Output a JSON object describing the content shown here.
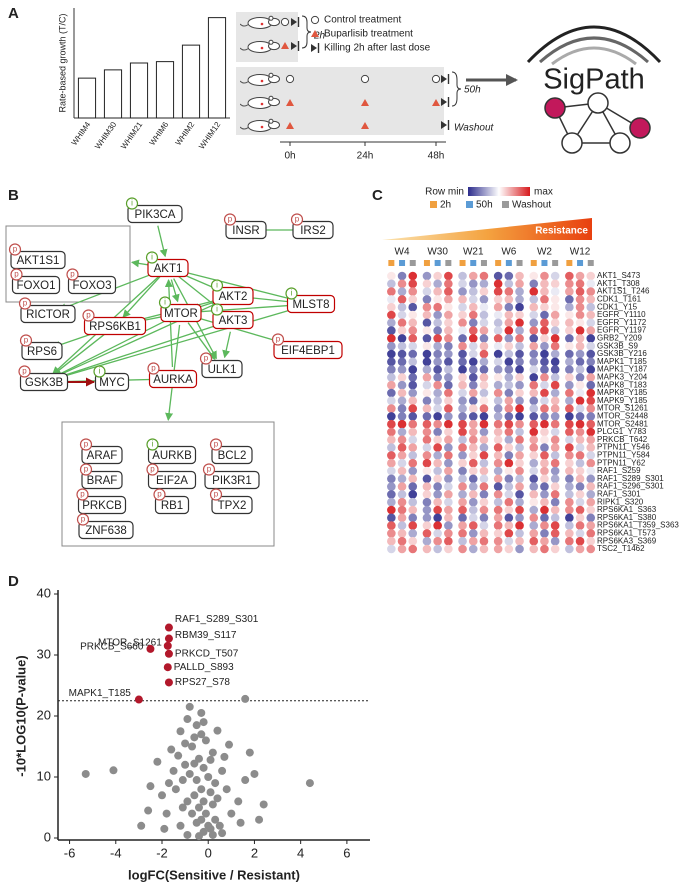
{
  "panels": [
    "A",
    "B",
    "C",
    "D"
  ],
  "diagram": {
    "legend": [
      "Control treatment",
      "Buparlisib treatment",
      "Killing 2h after last dose"
    ],
    "durations": [
      "2h",
      "50h",
      "Washout"
    ],
    "timepoints": [
      "0h",
      "24h",
      "48h"
    ],
    "logo": "SigPath"
  },
  "network": {
    "badge_colors": {
      "i": "#5aa02c",
      "p": "#c0504d"
    },
    "highlight_color": "#c00000",
    "edge_color": "#5cb85c",
    "inhibit_color": "#a01010",
    "nodes": [
      {
        "label": "PIK3CA",
        "badge": "i",
        "highlight": false
      },
      {
        "label": "INSR",
        "badge": "p",
        "highlight": false
      },
      {
        "label": "IRS2",
        "badge": "p",
        "highlight": false
      },
      {
        "label": "AKT1",
        "badge": "i",
        "highlight": true
      },
      {
        "label": "AKT2",
        "badge": "i",
        "highlight": true
      },
      {
        "label": "MLST8",
        "badge": "i",
        "highlight": true
      },
      {
        "label": "MTOR",
        "badge": "i",
        "highlight": true
      },
      {
        "label": "AKT3",
        "badge": "i",
        "highlight": true
      },
      {
        "label": "RPS6KB1",
        "badge": "p",
        "highlight": true
      },
      {
        "label": "RICTOR",
        "badge": "p",
        "highlight": false
      },
      {
        "label": "EIF4EBP1",
        "badge": "p",
        "highlight": true
      },
      {
        "label": "RPS6",
        "badge": "p",
        "highlight": false
      },
      {
        "label": "ULK1",
        "badge": "p",
        "highlight": false
      },
      {
        "label": "AURKA",
        "badge": "p",
        "highlight": true
      },
      {
        "label": "GSK3B",
        "badge": "p",
        "highlight": false
      },
      {
        "label": "MYC",
        "badge": "i",
        "highlight": false
      },
      {
        "label": "AKT1S1",
        "badge": "p",
        "highlight": false
      },
      {
        "label": "FOXO1",
        "badge": "p",
        "highlight": false
      },
      {
        "label": "FOXO3",
        "badge": "p",
        "highlight": false
      },
      {
        "label": "ARAF",
        "badge": "p",
        "highlight": false
      },
      {
        "label": "AURKB",
        "badge": "i",
        "highlight": false
      },
      {
        "label": "BCL2",
        "badge": "p",
        "highlight": false
      },
      {
        "label": "BRAF",
        "badge": "p",
        "highlight": false
      },
      {
        "label": "EIF2A",
        "badge": "p",
        "highlight": false
      },
      {
        "label": "PIK3R1",
        "badge": "p",
        "highlight": false
      },
      {
        "label": "PRKCB",
        "badge": "p",
        "highlight": false
      },
      {
        "label": "RB1",
        "badge": "p",
        "highlight": false
      },
      {
        "label": "TPX2",
        "badge": "p",
        "highlight": false
      },
      {
        "label": "ZNF638",
        "badge": "p",
        "highlight": false
      }
    ]
  },
  "chart_data": [
    {
      "type": "bar",
      "y_label": "Rate-based growth (T/C)",
      "categories": [
        "WHIM4",
        "WHIM30",
        "WHIM21",
        "WHIM6",
        "WHIM2",
        "WHIM12"
      ],
      "values": [
        0.29,
        0.35,
        0.4,
        0.41,
        0.53,
        0.73
      ],
      "color": "#ffffff",
      "ylim": [
        0,
        0.8
      ]
    },
    {
      "type": "heatmap",
      "legend": {
        "min_label": "Row min",
        "max_label": "max"
      },
      "gradient_label": "Resistance",
      "colors": {
        "min": "#2c2c8c",
        "mid": "#ffffff",
        "max": "#d7191c"
      },
      "scale": [
        -1,
        1
      ],
      "conditions": [
        {
          "name": "2h",
          "color": "#f0a040"
        },
        {
          "name": "50h",
          "color": "#5b9bd5"
        },
        {
          "name": "Washout",
          "color": "#9a9a9a"
        }
      ],
      "column_groups": [
        "W4",
        "W30",
        "W21",
        "W6",
        "W2",
        "W12"
      ],
      "rows": [
        "AKT1_S473",
        "AKT1_T308",
        "AKT1S1_T246",
        "CDK1_T161",
        "CDK1_Y15",
        "EGFR_Y1110",
        "EGFR_Y1172",
        "EGFR_Y1197",
        "GRB2_Y209",
        "GSK3B_S9",
        "GSK3B_Y216",
        "MAPK1_T185",
        "MAPK1_Y187",
        "MAPK3_Y204",
        "MAPK8_T183",
        "MAPK8_Y185",
        "MAPK9_Y185",
        "MTOR_S1261",
        "MTOR_S2448",
        "MTOR_S2481",
        "PLCG1_Y783",
        "PRKCB_T642",
        "PTPN11_Y546",
        "PTPN11_Y584",
        "PTPN11_Y62",
        "RAF1_S259",
        "RAF1_S289_S301",
        "RAF1_S296_S301",
        "RAF1_S301",
        "RIPK1_S320",
        "RPS6KA1_S363",
        "RPS6KA1_S380",
        "RPS6KA1_T359_S363",
        "RPS6KA1_T573",
        "RPS6KA3_S369",
        "TSC2_T1462"
      ],
      "values": [
        [
          0.1,
          -0.6,
          0.9,
          -0.5,
          0.2,
          0.8,
          -0.3,
          0.4,
          0.6,
          -0.8,
          -0.7,
          0.3,
          0.1,
          0.5,
          -0.2,
          0.7,
          0.4,
          0.2
        ],
        [
          -0.3,
          0.5,
          0.8,
          0.2,
          -0.4,
          0.6,
          -0.2,
          -0.5,
          -0.4,
          0.9,
          -0.3,
          0.4,
          -0.6,
          0.3,
          0.2,
          0.5,
          0.6,
          -0.1
        ],
        [
          0.6,
          -0.4,
          0.5,
          -0.2,
          0.3,
          0.7,
          -0.5,
          -0.3,
          0.2,
          0.8,
          0.6,
          -0.4,
          0.9,
          0.3,
          -0.1,
          0.4,
          0.7,
          0.5
        ],
        [
          -0.1,
          0.7,
          0.2,
          -0.6,
          0.1,
          0.4,
          0.3,
          -0.2,
          -0.5,
          0.2,
          0.3,
          -0.4,
          -0.3,
          0.6,
          0.1,
          -0.7,
          0.5,
          0.3
        ],
        [
          0.2,
          -0.3,
          -0.8,
          0.5,
          0.6,
          0.1,
          -0.2,
          0.3,
          -0.1,
          0.4,
          -0.6,
          -0.9,
          0.3,
          0.2,
          0.1,
          -0.4,
          0.5,
          -0.3
        ],
        [
          0.8,
          -0.2,
          0.1,
          0.3,
          -0.5,
          0.4,
          0.2,
          0.6,
          -0.3,
          -0.1,
          0.3,
          0.2,
          -0.2,
          -0.7,
          0.4,
          0.1,
          0.5,
          0.3
        ],
        [
          -0.4,
          0.6,
          0.3,
          -0.8,
          -0.3,
          0.2,
          0.5,
          -0.6,
          -0.2,
          -0.3,
          0.4,
          0.9,
          -0.5,
          0.7,
          0.2,
          0.3,
          0.1,
          -0.2
        ],
        [
          -0.8,
          0.2,
          0.5,
          0.1,
          -0.6,
          0.3,
          -0.1,
          0.7,
          0.4,
          -0.2,
          0.9,
          -0.4,
          0.6,
          0.8,
          -0.3,
          0.2,
          0.9,
          0.4
        ],
        [
          0.9,
          -0.9,
          0.7,
          -0.8,
          0.8,
          0.5,
          -0.7,
          0.9,
          -0.6,
          0.7,
          -0.5,
          0.6,
          -0.8,
          0.2,
          0.9,
          -0.7,
          0.3,
          -0.9
        ],
        [
          -0.5,
          -0.3,
          -0.2,
          0.1,
          -0.4,
          -0.6,
          0.5,
          -0.2,
          0.3,
          -0.1,
          0.2,
          -0.3,
          0.4,
          -0.5,
          0.6,
          0.1,
          0.3,
          -0.2
        ],
        [
          -0.9,
          -0.8,
          -0.7,
          -0.9,
          -0.6,
          -0.5,
          -0.8,
          -0.2,
          0.7,
          -0.9,
          -0.3,
          -0.8,
          -0.6,
          -0.9,
          -0.4,
          -0.7,
          -0.5,
          -0.8
        ],
        [
          -0.8,
          -0.7,
          -0.3,
          -0.9,
          -0.5,
          -0.8,
          -0.7,
          -0.9,
          -0.4,
          -0.2,
          -0.9,
          -0.6,
          -0.5,
          -0.8,
          -0.9,
          -0.4,
          -0.7,
          -0.6
        ],
        [
          -0.6,
          -0.5,
          -0.9,
          -0.4,
          -0.8,
          -0.3,
          -0.9,
          -0.6,
          -0.7,
          -0.5,
          -0.6,
          -0.9,
          -0.2,
          -0.7,
          -0.8,
          -0.6,
          -0.3,
          -0.9
        ],
        [
          -0.3,
          0.2,
          -0.7,
          0.4,
          -0.6,
          -0.5,
          0.2,
          -0.8,
          0.3,
          0.1,
          -0.4,
          0.2,
          -0.9,
          0.5,
          -0.3,
          0.2,
          -0.6,
          0.4
        ],
        [
          0.4,
          -0.5,
          -0.8,
          -0.2,
          0.5,
          -0.7,
          0.3,
          -0.6,
          0.2,
          -0.4,
          -0.3,
          -0.5,
          0.6,
          -0.2,
          0.8,
          -0.5,
          0.1,
          -0.7
        ],
        [
          -0.7,
          0.3,
          -0.5,
          0.1,
          -0.4,
          0.6,
          -0.2,
          0.4,
          -0.3,
          0.5,
          -0.6,
          0.2,
          0.3,
          0.8,
          -0.4,
          0.6,
          -0.1,
          0.9
        ],
        [
          -0.2,
          -0.4,
          0.3,
          -0.6,
          -0.3,
          0.2,
          -0.5,
          -0.7,
          0.1,
          -0.3,
          0.4,
          -0.5,
          -0.6,
          -0.2,
          0.3,
          -0.4,
          0.9,
          0.8
        ],
        [
          0.5,
          -0.6,
          0.8,
          0.3,
          -0.2,
          0.7,
          -0.4,
          0.2,
          0.6,
          -0.5,
          0.5,
          0.9,
          -0.3,
          0.6,
          0.4,
          0.7,
          -0.2,
          0.5
        ],
        [
          -0.9,
          -0.6,
          -0.8,
          -0.7,
          -0.9,
          -0.5,
          -0.6,
          -0.8,
          -0.9,
          -0.4,
          -0.7,
          -0.9,
          -0.8,
          -0.6,
          -0.5,
          -0.9,
          -0.7,
          -0.6
        ],
        [
          0.8,
          0.9,
          0.6,
          0.7,
          0.5,
          0.9,
          0.8,
          0.4,
          0.9,
          0.6,
          0.8,
          0.5,
          0.7,
          0.9,
          0.6,
          0.8,
          0.9,
          0.7
        ],
        [
          0.6,
          -0.4,
          0.3,
          0.5,
          -0.6,
          0.2,
          0.8,
          0.4,
          -0.5,
          0.3,
          0.6,
          -0.3,
          0.9,
          0.2,
          -0.2,
          0.7,
          0.5,
          0.9
        ],
        [
          0.3,
          0.5,
          -0.2,
          0.6,
          0.2,
          0.4,
          -0.3,
          0.5,
          0.3,
          0.2,
          -0.4,
          0.6,
          0.4,
          0.1,
          0.5,
          -0.2,
          0.3,
          0.4
        ],
        [
          -0.3,
          0.7,
          0.4,
          -0.2,
          0.8,
          -0.5,
          0.6,
          0.3,
          -0.4,
          0.7,
          0.2,
          -0.3,
          0.5,
          -0.6,
          0.4,
          0.8,
          -0.2,
          0.3
        ],
        [
          0.7,
          0.4,
          -0.3,
          0.5,
          -0.4,
          0.6,
          -0.5,
          0.2,
          0.8,
          0.3,
          -0.6,
          0.4,
          0.2,
          0.7,
          -0.3,
          0.5,
          0.6,
          -0.2
        ],
        [
          0.4,
          -0.2,
          0.6,
          0.8,
          0.3,
          -0.5,
          0.2,
          0.7,
          -0.3,
          0.5,
          0.9,
          0.2,
          -0.4,
          0.3,
          0.6,
          0.2,
          -0.3,
          0.5
        ],
        [
          -0.2,
          0.3,
          -0.5,
          0.1,
          -0.3,
          0.4,
          -0.6,
          0.2,
          0.3,
          -0.4,
          0.1,
          0.5,
          -0.2,
          0.4,
          -0.5,
          0.3,
          0.2,
          -0.1
        ],
        [
          -0.6,
          -0.4,
          0.3,
          -0.8,
          0.2,
          -0.5,
          -0.3,
          -0.7,
          -0.2,
          0.4,
          -0.6,
          -0.3,
          -0.8,
          0.2,
          -0.4,
          -0.6,
          0.3,
          -0.5
        ],
        [
          -0.5,
          0.4,
          -0.7,
          0.3,
          -0.6,
          -0.2,
          0.5,
          -0.4,
          0.6,
          -0.8,
          -0.3,
          0.4,
          -0.5,
          -0.7,
          0.2,
          -0.4,
          -0.6,
          0.3
        ],
        [
          -0.7,
          -0.3,
          -0.9,
          0.2,
          -0.5,
          0.4,
          -0.4,
          0.3,
          -0.6,
          0.5,
          -0.2,
          -0.8,
          0.3,
          -0.5,
          0.6,
          -0.3,
          0.2,
          -0.4
        ],
        [
          -0.4,
          0.5,
          -0.3,
          -0.6,
          0.3,
          -0.2,
          0.4,
          -0.5,
          0.2,
          -0.3,
          0.6,
          -0.4,
          0.1,
          0.3,
          -0.6,
          0.5,
          -0.2,
          0.4
        ],
        [
          0.9,
          0.6,
          0.3,
          -0.5,
          0.8,
          0.4,
          0.7,
          -0.3,
          0.5,
          0.6,
          0.2,
          0.8,
          -0.4,
          0.9,
          0.3,
          0.5,
          0.7,
          0.2
        ],
        [
          -0.8,
          0.4,
          -0.6,
          -0.5,
          -0.9,
          0.3,
          -0.7,
          -0.2,
          -0.6,
          0.4,
          -0.8,
          -0.5,
          0.5,
          -0.7,
          -0.3,
          -0.9,
          0.2,
          -0.6
        ],
        [
          0.7,
          -0.3,
          0.8,
          0.2,
          0.9,
          -0.5,
          0.4,
          0.7,
          -0.2,
          0.6,
          0.3,
          0.9,
          -0.4,
          0.5,
          0.8,
          -0.3,
          0.6,
          0.4
        ],
        [
          0.5,
          0.3,
          -0.4,
          0.7,
          -0.2,
          0.5,
          0.6,
          -0.5,
          0.3,
          0.2,
          0.8,
          -0.3,
          0.4,
          -0.6,
          0.7,
          0.3,
          -0.2,
          0.6
        ],
        [
          0.3,
          0.6,
          0.2,
          -0.4,
          0.5,
          0.7,
          -0.3,
          0.4,
          0.6,
          0.5,
          -0.2,
          0.3,
          0.7,
          0.4,
          -0.5,
          0.6,
          0.8,
          0.2
        ],
        [
          -0.2,
          0.4,
          0.6,
          0.3,
          -0.3,
          0.2,
          0.5,
          -0.4,
          0.3,
          0.4,
          0.2,
          -0.5,
          0.3,
          0.6,
          0.2,
          -0.3,
          0.4,
          0.5
        ]
      ]
    },
    {
      "type": "scatter",
      "x_label": "logFC(Sensitive / Resistant)",
      "y_label": "-10*LOG10(P-value)",
      "xlim": [
        -6.5,
        7
      ],
      "ylim": [
        0,
        40
      ],
      "xticks": [
        -6,
        -4,
        -2,
        0,
        2,
        4,
        6
      ],
      "yticks": [
        0,
        10,
        20,
        30,
        40
      ],
      "threshold": 22.5,
      "series": [
        {
          "color": "#8c8c8c",
          "x": [
            -0.2,
            0,
            -0.3,
            0.1,
            -0.5,
            0.3,
            -0.1,
            -0.4,
            0.2,
            -0.7,
            0.5,
            -0.2,
            -0.6,
            0.1,
            -0.3,
            -0.9,
            0.4,
            -1.1,
            -0.5,
            0,
            -0.8,
            0.3,
            -1.4,
            -0.2,
            -1,
            0.6,
            -0.4,
            -1.3,
            0.2,
            -0.7,
            -0.1,
            -1.2,
            -0.5,
            -0.9,
            -0.3,
            -0.8,
            -0.6,
            -1.5,
            -1.7,
            0.8,
            1,
            -1.8,
            1.3,
            -2,
            -1.6,
            0.9,
            1.6,
            1.8,
            2,
            2.4,
            4.4,
            -5.3,
            -4.1,
            -2.9,
            -2.5,
            -2.2,
            1.6,
            -0.9,
            0.6,
            -0.4,
            0.2,
            -1.2,
            1.4,
            -0.6,
            0.1,
            -1,
            -0.3,
            -2.6,
            2.2,
            -1.9,
            0.7,
            -1.1,
            0.4,
            -0.2
          ],
          "y": [
            1,
            2,
            3,
            1.5,
            2.5,
            3,
            4,
            5,
            5.5,
            4,
            2,
            6,
            7,
            7.5,
            8,
            6,
            6.5,
            5,
            9.5,
            10,
            10.5,
            9,
            8,
            11.5,
            12,
            11,
            13,
            13.5,
            14,
            15,
            16,
            17.5,
            18.5,
            19.5,
            20.5,
            21.5,
            16.5,
            11,
            9,
            8,
            4,
            4,
            6,
            7,
            14.5,
            15.3,
            22.8,
            14,
            10.5,
            5.5,
            9,
            10.5,
            11.1,
            2,
            8.5,
            12.5,
            9.5,
            0.5,
            0.8,
            0.3,
            0.5,
            2,
            2.5,
            12.2,
            12.8,
            15.5,
            17,
            4.5,
            3,
            1.5,
            13.3,
            9.5,
            17.6,
            19
          ]
        },
        {
          "color": "#b2182b",
          "x": [
            -1.7,
            -1.7,
            -1.75,
            -1.7,
            -1.75,
            -1.7,
            -2.5,
            -3.0
          ],
          "y": [
            34.5,
            32.7,
            31.5,
            30.2,
            28.0,
            25.5,
            31.0,
            22.7
          ],
          "labels": [
            "RAF1_S289_S301",
            "RBM39_S117",
            "MTOR_S1261",
            "PRKCD_T507",
            "PALLD_S893",
            "RPS27_S78",
            "PRKCB_S660",
            "MAPK1_T185"
          ]
        }
      ]
    }
  ]
}
